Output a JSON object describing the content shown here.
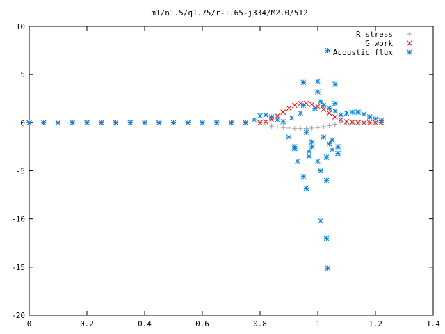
{
  "chart_data": {
    "type": "scatter",
    "title": "m1/n1.5/q1.75/r-+.65-j334/M2.0/512",
    "xlabel": "",
    "ylabel": "",
    "xlim": [
      0,
      1.4
    ],
    "ylim": [
      -20,
      10
    ],
    "xticks": [
      "0",
      "0.2",
      "0.4",
      "0.6",
      "0.8",
      "1",
      "1.2",
      "1.4"
    ],
    "yticks": [
      "10",
      "5",
      "0",
      "-5",
      "-10",
      "-15",
      "-20"
    ],
    "grid": false,
    "legend_position": "top-right",
    "series": [
      {
        "name": "R stress",
        "marker": "plus",
        "color": "#a0a0a0",
        "x": [
          0.0,
          0.05,
          0.1,
          0.15,
          0.2,
          0.25,
          0.3,
          0.35,
          0.4,
          0.45,
          0.5,
          0.55,
          0.6,
          0.65,
          0.7,
          0.75,
          0.8,
          0.82,
          0.84,
          0.86,
          0.88,
          0.9,
          0.92,
          0.94,
          0.96,
          0.98,
          1.0,
          1.02,
          1.04,
          1.06,
          1.08,
          1.1,
          1.12,
          1.14,
          1.16,
          1.18,
          1.2,
          1.22
        ],
        "y": [
          0,
          0,
          0,
          0,
          0,
          0,
          0,
          0,
          0,
          0,
          0,
          0,
          0,
          0,
          0,
          0,
          0,
          -0.2,
          -0.35,
          -0.45,
          -0.5,
          -0.55,
          -0.6,
          -0.6,
          -0.6,
          -0.55,
          -0.5,
          -0.4,
          -0.3,
          -0.15,
          0,
          0.05,
          0.05,
          0.03,
          0,
          0,
          0,
          0
        ]
      },
      {
        "name": "G work",
        "marker": "cross",
        "color": "#ff0000",
        "x": [
          0.0,
          0.05,
          0.1,
          0.15,
          0.2,
          0.25,
          0.3,
          0.35,
          0.4,
          0.45,
          0.5,
          0.55,
          0.6,
          0.65,
          0.7,
          0.75,
          0.8,
          0.82,
          0.84,
          0.86,
          0.88,
          0.9,
          0.92,
          0.94,
          0.96,
          0.98,
          1.0,
          1.02,
          1.04,
          1.06,
          1.08,
          1.1,
          1.12,
          1.14,
          1.16,
          1.18,
          1.2,
          1.22
        ],
        "y": [
          0,
          0,
          0,
          0,
          0,
          0,
          0,
          0,
          0,
          0,
          0,
          0,
          0,
          0,
          0,
          0,
          0,
          0.1,
          0.3,
          0.7,
          1.1,
          1.5,
          1.8,
          2.0,
          2.0,
          1.9,
          1.7,
          1.4,
          1.0,
          0.6,
          0.3,
          0.1,
          0.05,
          0,
          0,
          0,
          0,
          0
        ]
      },
      {
        "name": "Acoustic flux",
        "marker": "star",
        "color": "#0080e0",
        "x": [
          0.0,
          0.05,
          0.1,
          0.15,
          0.2,
          0.25,
          0.3,
          0.35,
          0.4,
          0.45,
          0.5,
          0.55,
          0.6,
          0.65,
          0.7,
          0.75,
          0.78,
          0.8,
          0.82,
          0.84,
          0.86,
          0.88,
          1.08,
          1.1,
          1.12,
          1.14,
          1.16,
          1.18,
          1.2,
          1.22,
          0.9,
          0.92,
          0.93,
          0.95,
          0.96,
          0.97,
          0.98,
          0.99,
          1.0,
          1.01,
          1.02,
          1.03,
          1.04,
          1.05,
          1.06,
          1.07,
          0.91,
          0.94,
          0.96,
          0.98,
          1.0,
          1.02,
          1.04,
          1.06,
          0.92,
          0.95,
          0.97,
          1.01,
          1.03,
          1.05,
          1.07,
          1.01,
          1.03,
          1.035,
          1.035,
          1.06,
          0.95,
          1.0
        ],
        "y": [
          0,
          0,
          0,
          0,
          0,
          0,
          0,
          0,
          0,
          0,
          0,
          0,
          0,
          0,
          0,
          0,
          0.3,
          0.7,
          0.8,
          0.6,
          0.3,
          0.1,
          0.8,
          1.0,
          1.1,
          1.1,
          0.9,
          0.6,
          0.4,
          0.2,
          -1.5,
          -2.5,
          -4.0,
          -5.6,
          -6.8,
          -3.5,
          -2.0,
          1.5,
          3.2,
          2.2,
          -1.5,
          -3.6,
          1.5,
          -2.8,
          2.0,
          -3.2,
          0.5,
          1.0,
          -1.0,
          -2.5,
          -4.0,
          1.8,
          -2.2,
          1.2,
          -2.7,
          4.2,
          -3.0,
          -5.0,
          -6.0,
          -1.8,
          -2.5,
          -10.2,
          -12.0,
          7.5,
          -15.1,
          4.0,
          1.8,
          4.3
        ]
      }
    ]
  }
}
